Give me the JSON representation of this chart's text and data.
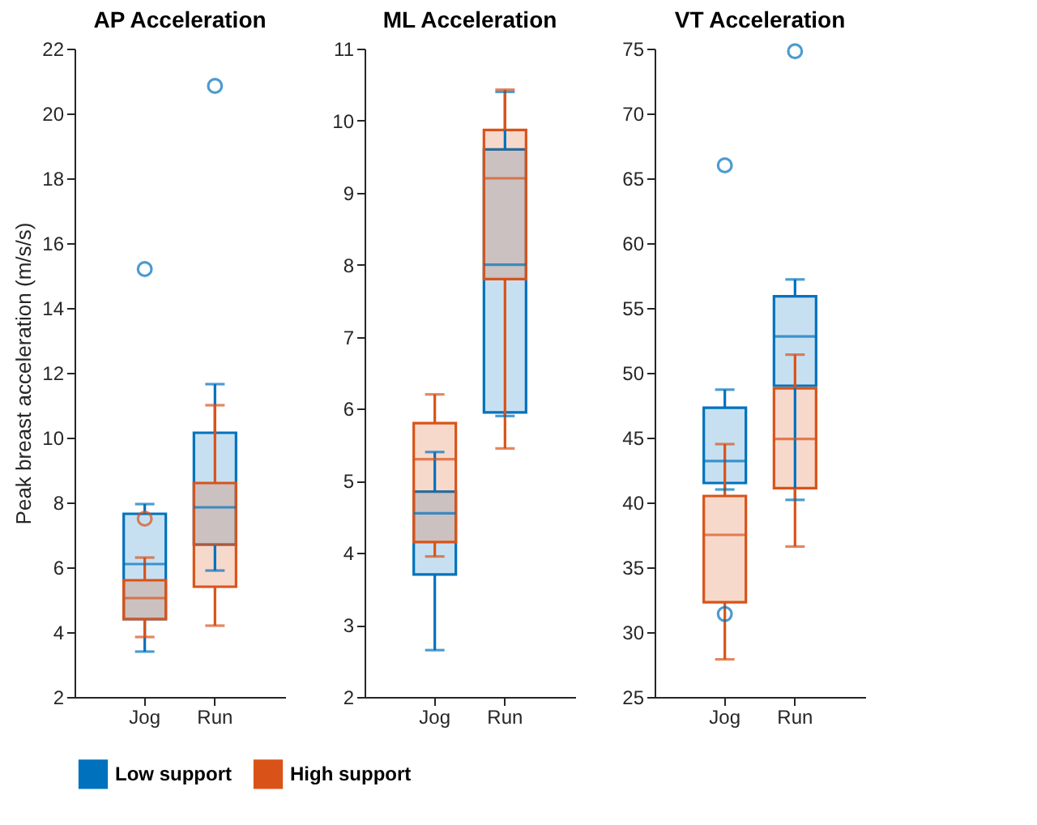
{
  "chart_data": [
    {
      "type": "box",
      "title": "AP Acceleration",
      "ylabel": "Peak breast acceleration (m/s/s)",
      "categories": [
        "Jog",
        "Run"
      ],
      "ylim": [
        2,
        22
      ],
      "yticks": [
        2,
        4,
        6,
        8,
        10,
        12,
        14,
        16,
        18,
        20,
        22
      ],
      "grid": false,
      "legend": "bottom",
      "series": [
        {
          "name": "Low support",
          "color": "#0072bd",
          "boxes": [
            {
              "low": 3.4,
              "q1": 4.4,
              "median": 6.1,
              "q3": 7.65,
              "high": 7.95,
              "outliers": [
                15.2
              ]
            },
            {
              "low": 5.9,
              "q1": 6.7,
              "median": 7.85,
              "q3": 10.15,
              "high": 11.65,
              "outliers": [
                20.85
              ]
            }
          ]
        },
        {
          "name": "High support",
          "color": "#d95319",
          "boxes": [
            {
              "low": 3.85,
              "q1": 4.4,
              "median": 5.05,
              "q3": 5.6,
              "high": 6.3,
              "outliers": [
                7.5
              ]
            },
            {
              "low": 4.2,
              "q1": 5.4,
              "median": 6.7,
              "q3": 8.6,
              "high": 11.0
            }
          ]
        }
      ]
    },
    {
      "type": "box",
      "title": "ML Acceleration",
      "categories": [
        "Jog",
        "Run"
      ],
      "ylim": [
        2,
        11
      ],
      "yticks": [
        2,
        3,
        4,
        5,
        6,
        7,
        8,
        9,
        10,
        11
      ],
      "grid": false,
      "series": [
        {
          "name": "Low support",
          "color": "#0072bd",
          "boxes": [
            {
              "low": 2.65,
              "q1": 3.7,
              "median": 4.55,
              "q3": 4.85,
              "high": 5.4
            },
            {
              "low": 5.9,
              "q1": 5.95,
              "median": 8.0,
              "q3": 9.6,
              "high": 10.4
            }
          ]
        },
        {
          "name": "High support",
          "color": "#d95319",
          "boxes": [
            {
              "low": 3.95,
              "q1": 4.15,
              "median": 5.3,
              "q3": 5.8,
              "high": 6.2
            },
            {
              "low": 5.45,
              "q1": 7.8,
              "median": 9.2,
              "q3": 9.87,
              "high": 10.43
            }
          ]
        }
      ]
    },
    {
      "type": "box",
      "title": "VT Acceleration",
      "categories": [
        "Jog",
        "Run"
      ],
      "ylim": [
        25,
        75
      ],
      "yticks": [
        25,
        30,
        35,
        40,
        45,
        50,
        55,
        60,
        65,
        70,
        75
      ],
      "grid": false,
      "series": [
        {
          "name": "Low support",
          "color": "#0072bd",
          "boxes": [
            {
              "low": 41.0,
              "q1": 41.5,
              "median": 43.2,
              "q3": 47.3,
              "high": 48.7,
              "outliers": [
                66.0,
                31.4
              ]
            },
            {
              "low": 40.2,
              "q1": 49.0,
              "median": 52.8,
              "q3": 55.9,
              "high": 57.2,
              "outliers": [
                74.8
              ]
            }
          ]
        },
        {
          "name": "High support",
          "color": "#d95319",
          "boxes": [
            {
              "low": 27.9,
              "q1": 32.3,
              "median": 37.5,
              "q3": 40.5,
              "high": 44.5
            },
            {
              "low": 36.6,
              "q1": 41.1,
              "median": 44.9,
              "q3": 48.8,
              "high": 51.4
            }
          ]
        }
      ]
    }
  ]
}
